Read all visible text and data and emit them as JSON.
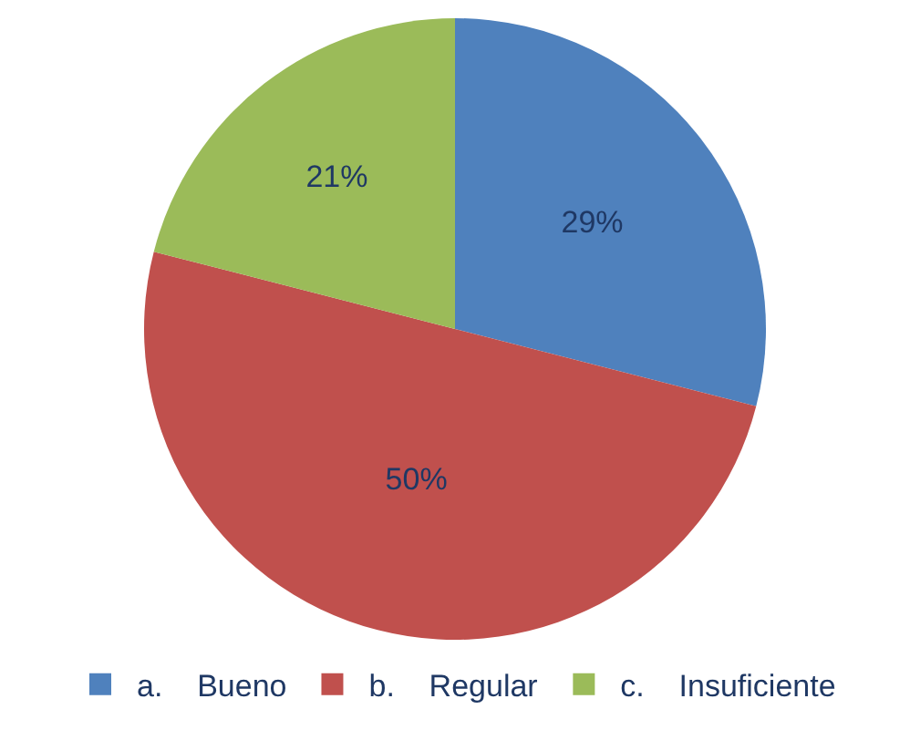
{
  "chart_data": {
    "type": "pie",
    "categories": [
      "a.    Bueno",
      "b.    Regular",
      "c.    Insuficiente"
    ],
    "values": [
      29,
      50,
      21
    ],
    "colors": [
      "#4f81bd",
      "#c0504d",
      "#9bbb59"
    ],
    "value_labels": [
      "29%",
      "50%",
      "21%"
    ],
    "legend": "bottom"
  }
}
